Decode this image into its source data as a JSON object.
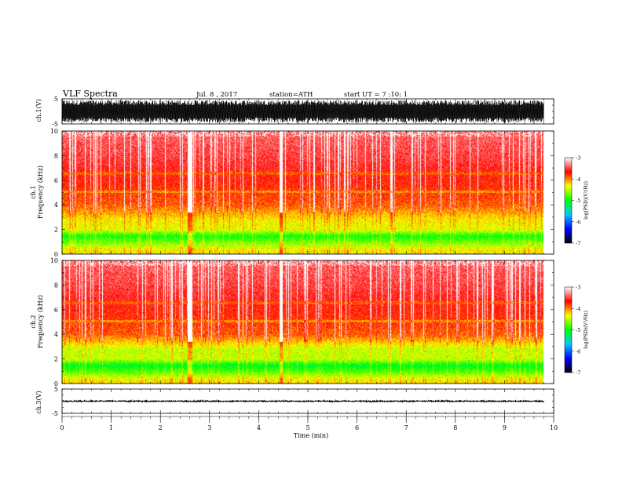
{
  "header": {
    "title": "VLF Spectra",
    "date": "Jul. 8 , 2017",
    "station": "station=ATH",
    "start": "start UT = 7 :10: 1"
  },
  "colorbar": {
    "label": "log(PSD)(V²/Hz)",
    "ticks": [
      "-3",
      "-4",
      "-5",
      "-6",
      "-7"
    ],
    "stops": [
      "#ffffff",
      "#ff0000",
      "#ffff00",
      "#00ff00",
      "#00c8ff",
      "#0000ff",
      "#000000"
    ]
  },
  "chart_data": [
    {
      "type": "line",
      "name": "ch1-waveform",
      "ylabel": "ch.1(V)",
      "ylim": [
        -5,
        5
      ],
      "yticks": [
        "5",
        "-5"
      ],
      "xlim": [
        0,
        10
      ],
      "amplitude_range": [
        -4.5,
        4.5
      ],
      "duration_min": 9.8
    },
    {
      "type": "heatmap",
      "name": "ch1-spectrogram",
      "ylabel": "ch.1 Frequency (kHz)",
      "ylim": [
        0,
        10
      ],
      "yticks": [
        "0",
        "2",
        "4",
        "6",
        "8",
        "10"
      ],
      "xlim": [
        0,
        10
      ],
      "duration_min": 9.8,
      "psd_profile": [
        {
          "f": 0.3,
          "log_psd": -4.3
        },
        {
          "f": 1.0,
          "log_psd": -4.7
        },
        {
          "f": 1.5,
          "log_psd": -5.0
        },
        {
          "f": 2.0,
          "log_psd": -4.4
        },
        {
          "f": 2.8,
          "log_psd": -4.3
        },
        {
          "f": 4.0,
          "log_psd": -3.9
        },
        {
          "f": 6.0,
          "log_psd": -3.7
        },
        {
          "f": 8.0,
          "log_psd": -3.5
        },
        {
          "f": 10.0,
          "log_psd": -3.4
        }
      ]
    },
    {
      "type": "heatmap",
      "name": "ch2-spectrogram",
      "ylabel": "ch.2 Frequency (kHz)",
      "ylim": [
        0,
        10
      ],
      "yticks": [
        "0",
        "2",
        "4",
        "6",
        "8",
        "10"
      ],
      "xlim": [
        0,
        10
      ],
      "duration_min": 9.8,
      "psd_profile": [
        {
          "f": 0.3,
          "log_psd": -4.3
        },
        {
          "f": 1.0,
          "log_psd": -4.8
        },
        {
          "f": 1.5,
          "log_psd": -5.1
        },
        {
          "f": 2.0,
          "log_psd": -4.5
        },
        {
          "f": 2.8,
          "log_psd": -4.5
        },
        {
          "f": 4.0,
          "log_psd": -3.9
        },
        {
          "f": 6.0,
          "log_psd": -3.7
        },
        {
          "f": 8.0,
          "log_psd": -3.5
        },
        {
          "f": 10.0,
          "log_psd": -3.4
        }
      ]
    },
    {
      "type": "line",
      "name": "ch3-waveform",
      "ylabel": "ch.3(V)",
      "ylim": [
        -5,
        5
      ],
      "yticks": [
        "5",
        "-5"
      ],
      "xlim": [
        0,
        10
      ],
      "amplitude_range": [
        -0.5,
        0.5
      ],
      "duration_min": 9.8
    }
  ],
  "xaxis": {
    "label": "Time (min)",
    "ticks": [
      "0",
      "1",
      "2",
      "3",
      "4",
      "5",
      "6",
      "7",
      "8",
      "9",
      "10"
    ]
  }
}
